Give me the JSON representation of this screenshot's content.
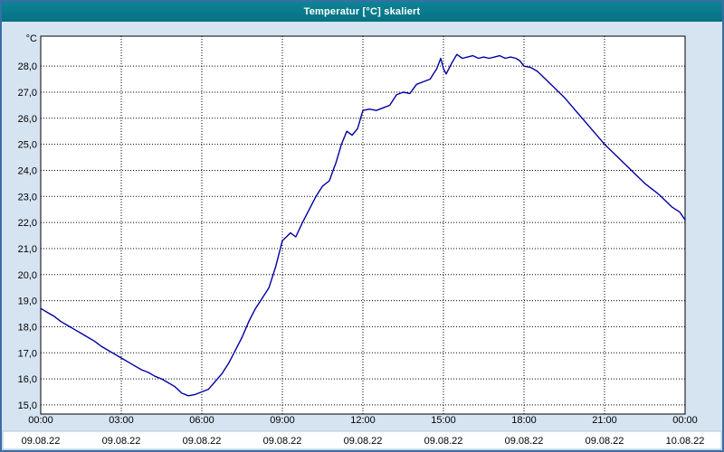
{
  "window": {
    "title": "Temperatur [°C] skaliert"
  },
  "colors": {
    "titlebar_bg": "#077d8c",
    "window_border": "#3a6ea5",
    "body_bg": "#d6e4f2",
    "plot_bg": "#ffffff",
    "grid": "#000000",
    "axis_text": "#000000",
    "line": "#0000a0",
    "footer_bg": "#fdfeff",
    "footer_border": "#b3c6da"
  },
  "chart_data": {
    "type": "line",
    "title": "Temperatur [°C] skaliert",
    "ylabel": "°C",
    "unit_label": "°C",
    "ylim": [
      14.65,
      29.15
    ],
    "xlim_hours": [
      0,
      24
    ],
    "grid": "dotted",
    "legend": "none",
    "y_tick_values": [
      28,
      27,
      26,
      25,
      24,
      23,
      22,
      21,
      20,
      19,
      18,
      17,
      16,
      15
    ],
    "y_tick_labels": [
      "28,0",
      "27,0",
      "26,0",
      "25,0",
      "24,0",
      "23,0",
      "22,0",
      "21,0",
      "20,0",
      "19,0",
      "18,0",
      "17,0",
      "16,0",
      "15,0"
    ],
    "x_tick_hours": [
      0,
      3,
      6,
      9,
      12,
      15,
      18,
      21,
      24
    ],
    "x_tick_time_labels": [
      "00:00",
      "03:00",
      "06:00",
      "09:00",
      "12:00",
      "15:00",
      "18:00",
      "21:00",
      "00:00"
    ],
    "x_tick_date_labels": [
      "09.08.22",
      "09.08.22",
      "09.08.22",
      "09.08.22",
      "09.08.22",
      "09.08.22",
      "09.08.22",
      "09.08.22",
      "10.08.22"
    ],
    "series": [
      {
        "name": "Temperatur",
        "points": [
          [
            0,
            18.7
          ],
          [
            0.25,
            18.55
          ],
          [
            0.5,
            18.4
          ],
          [
            0.75,
            18.2
          ],
          [
            1,
            18.05
          ],
          [
            1.25,
            17.9
          ],
          [
            1.5,
            17.75
          ],
          [
            1.75,
            17.6
          ],
          [
            2,
            17.45
          ],
          [
            2.25,
            17.25
          ],
          [
            2.5,
            17.1
          ],
          [
            2.75,
            16.95
          ],
          [
            3,
            16.8
          ],
          [
            3.25,
            16.65
          ],
          [
            3.5,
            16.5
          ],
          [
            3.75,
            16.35
          ],
          [
            4,
            16.25
          ],
          [
            4.25,
            16.1
          ],
          [
            4.5,
            16.0
          ],
          [
            4.75,
            15.85
          ],
          [
            5,
            15.7
          ],
          [
            5.25,
            15.45
          ],
          [
            5.5,
            15.35
          ],
          [
            5.75,
            15.4
          ],
          [
            6,
            15.5
          ],
          [
            6.25,
            15.6
          ],
          [
            6.5,
            15.9
          ],
          [
            6.75,
            16.2
          ],
          [
            7,
            16.6
          ],
          [
            7.25,
            17.1
          ],
          [
            7.5,
            17.6
          ],
          [
            7.75,
            18.2
          ],
          [
            8,
            18.7
          ],
          [
            8.25,
            19.1
          ],
          [
            8.5,
            19.5
          ],
          [
            8.75,
            20.3
          ],
          [
            9,
            21.3
          ],
          [
            9.15,
            21.45
          ],
          [
            9.3,
            21.6
          ],
          [
            9.5,
            21.45
          ],
          [
            9.75,
            22.0
          ],
          [
            10,
            22.5
          ],
          [
            10.25,
            23.0
          ],
          [
            10.5,
            23.4
          ],
          [
            10.75,
            23.6
          ],
          [
            11,
            24.3
          ],
          [
            11.2,
            25.0
          ],
          [
            11.4,
            25.5
          ],
          [
            11.6,
            25.35
          ],
          [
            11.8,
            25.6
          ],
          [
            12,
            26.3
          ],
          [
            12.25,
            26.35
          ],
          [
            12.5,
            26.3
          ],
          [
            12.75,
            26.4
          ],
          [
            13,
            26.5
          ],
          [
            13.25,
            26.9
          ],
          [
            13.5,
            27.0
          ],
          [
            13.75,
            26.95
          ],
          [
            14,
            27.3
          ],
          [
            14.25,
            27.4
          ],
          [
            14.5,
            27.5
          ],
          [
            14.75,
            27.9
          ],
          [
            14.9,
            28.3
          ],
          [
            15.0,
            27.9
          ],
          [
            15.1,
            27.7
          ],
          [
            15.3,
            28.1
          ],
          [
            15.5,
            28.45
          ],
          [
            15.7,
            28.3
          ],
          [
            15.9,
            28.35
          ],
          [
            16.1,
            28.4
          ],
          [
            16.3,
            28.3
          ],
          [
            16.5,
            28.35
          ],
          [
            16.7,
            28.3
          ],
          [
            16.9,
            28.35
          ],
          [
            17.1,
            28.4
          ],
          [
            17.3,
            28.3
          ],
          [
            17.5,
            28.35
          ],
          [
            17.7,
            28.3
          ],
          [
            17.85,
            28.2
          ],
          [
            18,
            28.0
          ],
          [
            18.25,
            27.95
          ],
          [
            18.5,
            27.8
          ],
          [
            18.75,
            27.55
          ],
          [
            19,
            27.3
          ],
          [
            19.5,
            26.8
          ],
          [
            20,
            26.2
          ],
          [
            20.5,
            25.6
          ],
          [
            21,
            25.0
          ],
          [
            21.5,
            24.5
          ],
          [
            22,
            24.0
          ],
          [
            22.5,
            23.5
          ],
          [
            23,
            23.1
          ],
          [
            23.5,
            22.6
          ],
          [
            23.8,
            22.4
          ],
          [
            24,
            22.1
          ]
        ]
      }
    ]
  }
}
